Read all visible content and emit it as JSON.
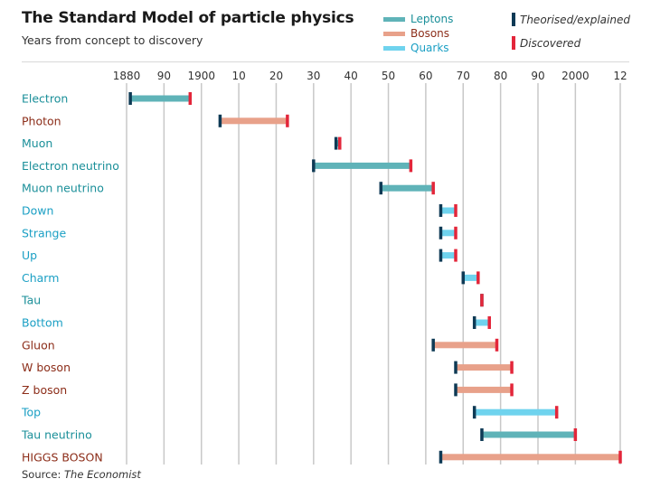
{
  "header": {
    "title": "The Standard Model of particle physics",
    "subtitle": "Years from concept to discovery"
  },
  "legend": {
    "leptons": "Leptons",
    "bosons": "Bosons",
    "quarks": "Quarks",
    "theorised": "Theorised/explained",
    "discovered": "Discovered"
  },
  "source": {
    "prefix": "Source:",
    "name": "The Economist"
  },
  "colors": {
    "lepton": "#5fb3b8",
    "boson": "#e8a18a",
    "quark": "#6fd3ee",
    "lepton_label": "#1a8f99",
    "boson_label": "#8c2d19",
    "quark_label": "#1a9fc4",
    "theorised_marker": "#0e3a55",
    "discovered_marker": "#e3263a",
    "grid": "#c8c8c8"
  },
  "chart_data": {
    "type": "range-bar",
    "title": "The Standard Model of particle physics",
    "subtitle": "Years from concept to discovery",
    "x_axis": {
      "min": 1880,
      "max": 2012,
      "ticks": [
        1880,
        1890,
        1900,
        1910,
        1920,
        1930,
        1940,
        1950,
        1960,
        1970,
        1980,
        1990,
        2000,
        2012
      ],
      "tick_labels": [
        "1880",
        "90",
        "1900",
        "10",
        "20",
        "30",
        "40",
        "50",
        "60",
        "70",
        "80",
        "90",
        "2000",
        "12"
      ],
      "position": "top"
    },
    "series": [
      {
        "name": "Electron",
        "category": "lepton",
        "theorised": 1881,
        "discovered": 1897
      },
      {
        "name": "Photon",
        "category": "boson",
        "theorised": 1905,
        "discovered": 1923
      },
      {
        "name": "Muon",
        "category": "lepton",
        "theorised": 1936,
        "discovered": 1937
      },
      {
        "name": "Electron neutrino",
        "category": "lepton",
        "theorised": 1930,
        "discovered": 1956
      },
      {
        "name": "Muon neutrino",
        "category": "lepton",
        "theorised": 1948,
        "discovered": 1962
      },
      {
        "name": "Down",
        "category": "quark",
        "theorised": 1964,
        "discovered": 1968
      },
      {
        "name": "Strange",
        "category": "quark",
        "theorised": 1964,
        "discovered": 1968
      },
      {
        "name": "Up",
        "category": "quark",
        "theorised": 1964,
        "discovered": 1968
      },
      {
        "name": "Charm",
        "category": "quark",
        "theorised": 1970,
        "discovered": 1974
      },
      {
        "name": "Tau",
        "category": "lepton",
        "theorised": 1975,
        "discovered": 1975
      },
      {
        "name": "Bottom",
        "category": "quark",
        "theorised": 1973,
        "discovered": 1977
      },
      {
        "name": "Gluon",
        "category": "boson",
        "theorised": 1962,
        "discovered": 1979
      },
      {
        "name": "W boson",
        "category": "boson",
        "theorised": 1968,
        "discovered": 1983
      },
      {
        "name": "Z boson",
        "category": "boson",
        "theorised": 1968,
        "discovered": 1983
      },
      {
        "name": "Top",
        "category": "quark",
        "theorised": 1973,
        "discovered": 1995
      },
      {
        "name": "Tau neutrino",
        "category": "lepton",
        "theorised": 1975,
        "discovered": 2000
      },
      {
        "name": "HIGGS BOSON",
        "category": "boson",
        "theorised": 1964,
        "discovered": 2012
      }
    ]
  }
}
